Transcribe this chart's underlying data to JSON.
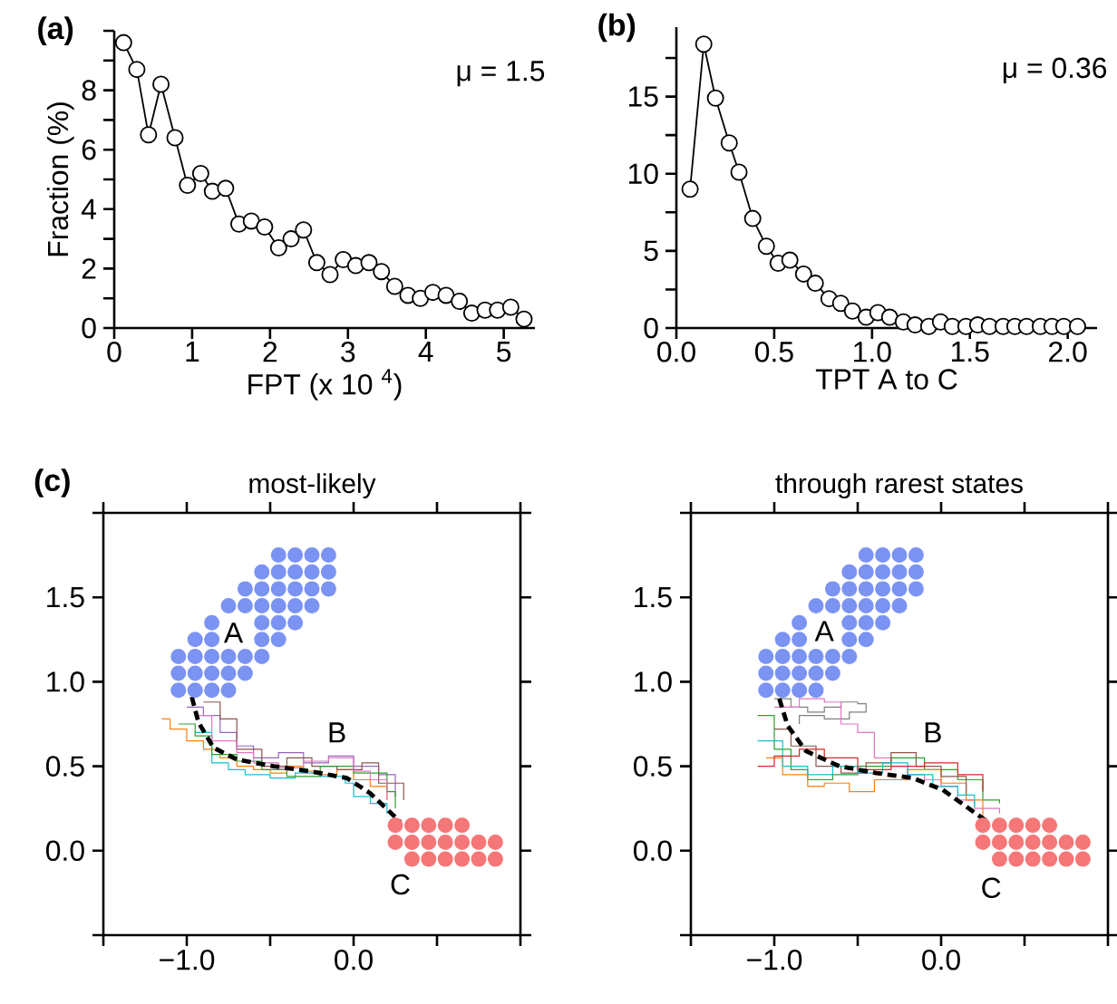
{
  "chart_data": [
    {
      "type": "line",
      "xlabel": "FPT (x 10 $^{4}$)",
      "ylabel": "Fraction (%)",
      "annotations": [
        "(a)",
        "μ = 1.5"
      ],
      "marker": "circle",
      "line_style": "solid",
      "xlim": [
        0,
        5.4
      ],
      "ylim": [
        0,
        10
      ],
      "xticks": [
        0,
        1,
        2,
        3,
        4,
        5
      ],
      "yticks": [
        0,
        {
          "value": 1,
          "label": null
        },
        2,
        {
          "value": 3,
          "label": null
        },
        4,
        {
          "value": 5,
          "label": null
        },
        6,
        {
          "value": 7,
          "label": null
        },
        8,
        {
          "value": 9,
          "label": null
        },
        {
          "value": 10,
          "label": null
        }
      ],
      "series": [
        {
          "color": "#000000",
          "x": [
            0.12,
            0.29,
            0.44,
            0.6,
            0.78,
            0.94,
            1.11,
            1.26,
            1.43,
            1.6,
            1.76,
            1.93,
            2.11,
            2.27,
            2.43,
            2.6,
            2.77,
            2.94,
            3.1,
            3.27,
            3.43,
            3.6,
            3.77,
            3.93,
            4.09,
            4.26,
            4.43,
            4.59,
            4.76,
            4.92,
            5.09,
            5.26
          ],
          "values": [
            9.6,
            8.7,
            6.5,
            8.2,
            6.4,
            4.8,
            5.2,
            4.6,
            4.7,
            3.5,
            3.6,
            3.4,
            2.7,
            3.0,
            3.3,
            2.2,
            1.8,
            2.3,
            2.1,
            2.2,
            1.9,
            1.4,
            1.1,
            1.0,
            1.2,
            1.1,
            0.9,
            0.5,
            0.6,
            0.6,
            0.7,
            0.3
          ]
        }
      ]
    },
    {
      "type": "line",
      "xlabel": "TPT A to C",
      "annotations": [
        "(b)",
        "μ = 0.36"
      ],
      "marker": "circle",
      "line_style": "solid",
      "xlim": [
        0,
        2.15
      ],
      "ylim": [
        0,
        19.5
      ],
      "xticks": [
        {
          "value": 0,
          "label": "0.0"
        },
        {
          "value": 0.5,
          "label": "0.5"
        },
        {
          "value": 1,
          "label": "1.0"
        },
        {
          "value": 1.5,
          "label": "1.5"
        },
        {
          "value": 2,
          "label": "2.0"
        }
      ],
      "yticks": [
        0,
        {
          "value": 2.5,
          "label": null
        },
        5,
        {
          "value": 7.5,
          "label": null
        },
        10,
        {
          "value": 12.5,
          "label": null
        },
        15,
        {
          "value": 17.5,
          "label": null
        }
      ],
      "series": [
        {
          "color": "#000000",
          "x": [
            0.07,
            0.14,
            0.2,
            0.27,
            0.32,
            0.39,
            0.46,
            0.52,
            0.58,
            0.65,
            0.71,
            0.78,
            0.84,
            0.9,
            0.97,
            1.03,
            1.09,
            1.16,
            1.22,
            1.29,
            1.35,
            1.41,
            1.48,
            1.54,
            1.6,
            1.67,
            1.73,
            1.79,
            1.86,
            1.92,
            1.98,
            2.05
          ],
          "values": [
            9.0,
            18.4,
            14.9,
            12.0,
            10.1,
            7.1,
            5.3,
            4.2,
            4.4,
            3.5,
            2.9,
            1.9,
            1.6,
            1.1,
            0.7,
            1.0,
            0.7,
            0.4,
            0.2,
            0.1,
            0.4,
            0.1,
            0.1,
            0.2,
            0.1,
            0.1,
            0.1,
            0.1,
            0.1,
            0.1,
            0.1,
            0.1
          ]
        }
      ]
    },
    {
      "type": "scatter",
      "title": "most-likely",
      "annotations": [
        "(c)",
        "A",
        "B",
        "C"
      ],
      "xlim": [
        -1.5,
        1.0
      ],
      "ylim": [
        -0.5,
        2.0
      ],
      "xticks": [
        {
          "value": -1.5,
          "label": null
        },
        {
          "value": -1,
          "label": "−1.0"
        },
        {
          "value": -0.5,
          "label": null
        },
        {
          "value": 0,
          "label": "0.0"
        },
        {
          "value": 0.5,
          "label": null
        },
        {
          "value": 1,
          "label": null
        }
      ],
      "yticks": [
        {
          "value": -0.5,
          "label": null
        },
        {
          "value": 0,
          "label": "0.0"
        },
        {
          "value": 0.5,
          "label": "0.5"
        },
        {
          "value": 1,
          "label": "1.0"
        },
        {
          "value": 1.5,
          "label": "1.5"
        },
        {
          "value": 2,
          "label": null
        }
      ],
      "series": [
        {
          "type": "scatter",
          "marker": "circle",
          "color": "#7b93f2",
          "x": [
            -1.05,
            -0.95,
            -0.85,
            -0.75,
            -1.05,
            -0.95,
            -0.85,
            -0.75,
            -0.65,
            -1.05,
            -0.95,
            -0.85,
            -0.75,
            -0.65,
            -0.55,
            -0.95,
            -0.85,
            -0.55,
            -0.45,
            -0.85,
            -0.55,
            -0.45,
            -0.35,
            -0.75,
            -0.65,
            -0.55,
            -0.45,
            -0.35,
            -0.25,
            -0.65,
            -0.55,
            -0.45,
            -0.35,
            -0.25,
            -0.15,
            -0.55,
            -0.45,
            -0.35,
            -0.25,
            -0.15,
            -0.45,
            -0.35,
            -0.25,
            -0.15
          ],
          "values": [
            0.95,
            0.95,
            0.95,
            0.95,
            1.05,
            1.05,
            1.05,
            1.05,
            1.05,
            1.15,
            1.15,
            1.15,
            1.15,
            1.15,
            1.15,
            1.25,
            1.25,
            1.25,
            1.25,
            1.35,
            1.35,
            1.35,
            1.35,
            1.45,
            1.45,
            1.45,
            1.45,
            1.45,
            1.45,
            1.55,
            1.55,
            1.55,
            1.55,
            1.55,
            1.55,
            1.65,
            1.65,
            1.65,
            1.65,
            1.65,
            1.75,
            1.75,
            1.75,
            1.75
          ]
        },
        {
          "type": "scatter",
          "marker": "circle",
          "color": "#f57777",
          "x": [
            0.25,
            0.35,
            0.45,
            0.55,
            0.65,
            0.25,
            0.35,
            0.45,
            0.55,
            0.65,
            0.75,
            0.85,
            0.35,
            0.45,
            0.55,
            0.65,
            0.75,
            0.85
          ],
          "values": [
            0.15,
            0.15,
            0.15,
            0.15,
            0.15,
            0.05,
            0.05,
            0.05,
            0.05,
            0.05,
            0.05,
            0.05,
            -0.05,
            -0.05,
            -0.05,
            -0.05,
            -0.05,
            -0.05
          ]
        },
        {
          "type": "step",
          "color": "#ff7f0e",
          "x": [
            -1.15,
            -1.1,
            -1.0,
            -0.9,
            -0.8,
            -0.7,
            -0.6,
            -0.5,
            -0.4,
            -0.3,
            -0.2,
            -0.1,
            0.0,
            0.1,
            0.2
          ],
          "values": [
            0.78,
            0.72,
            0.65,
            0.6,
            0.55,
            0.5,
            0.48,
            0.46,
            0.5,
            0.47,
            0.45,
            0.48,
            0.42,
            0.38,
            0.3
          ]
        },
        {
          "type": "step",
          "color": "#17becf",
          "x": [
            -0.95,
            -0.85,
            -0.75,
            -0.65,
            -0.5,
            -0.35,
            -0.2,
            -0.05,
            0.0,
            0.1,
            0.2
          ],
          "values": [
            0.7,
            0.52,
            0.48,
            0.45,
            0.43,
            0.46,
            0.44,
            0.4,
            0.32,
            0.28,
            0.22
          ]
        },
        {
          "type": "step",
          "color": "#9467bd",
          "x": [
            -1.0,
            -0.9,
            -0.8,
            -0.7,
            -0.6,
            -0.45,
            -0.3,
            -0.15,
            0.0,
            0.15,
            0.25
          ],
          "values": [
            0.85,
            0.8,
            0.7,
            0.62,
            0.55,
            0.58,
            0.52,
            0.56,
            0.5,
            0.45,
            0.32
          ]
        },
        {
          "type": "step",
          "color": "#8c564b",
          "x": [
            -0.9,
            -0.8,
            -0.7,
            -0.55,
            -0.4,
            -0.25,
            -0.1,
            0.05,
            0.15,
            0.3
          ],
          "values": [
            0.88,
            0.78,
            0.6,
            0.5,
            0.55,
            0.5,
            0.48,
            0.52,
            0.4,
            0.3
          ]
        },
        {
          "type": "step",
          "color": "#2ca02c",
          "x": [
            -1.05,
            -0.95,
            -0.85,
            -0.7,
            -0.55,
            -0.4,
            -0.2,
            0.0,
            0.2,
            0.25
          ],
          "values": [
            0.75,
            0.68,
            0.57,
            0.53,
            0.48,
            0.44,
            0.5,
            0.46,
            0.35,
            0.25
          ]
        },
        {
          "type": "step",
          "color": "#e377c2",
          "x": [
            -0.95,
            -0.85,
            -0.7,
            -0.6,
            -0.45,
            -0.3,
            -0.15,
            0.0,
            0.1,
            0.2
          ],
          "values": [
            0.8,
            0.65,
            0.58,
            0.52,
            0.49,
            0.53,
            0.55,
            0.47,
            0.42,
            0.3
          ]
        },
        {
          "type": "line",
          "line_style": "dashed",
          "marker": "none",
          "color": "#000000",
          "x": [
            -0.97,
            -0.93,
            -0.84,
            -0.7,
            -0.48,
            -0.26,
            -0.04,
            0.1,
            0.28
          ],
          "values": [
            0.91,
            0.76,
            0.61,
            0.54,
            0.5,
            0.47,
            0.43,
            0.34,
            0.17
          ]
        }
      ]
    },
    {
      "type": "scatter",
      "title": "through rarest states",
      "annotations": [
        "A",
        "B",
        "C"
      ],
      "xlim": [
        -1.5,
        1.0
      ],
      "ylim": [
        -0.5,
        2.0
      ],
      "xticks": [
        {
          "value": -1.5,
          "label": null
        },
        {
          "value": -1,
          "label": "−1.0"
        },
        {
          "value": -0.5,
          "label": null
        },
        {
          "value": 0,
          "label": "0.0"
        },
        {
          "value": 0.5,
          "label": null
        },
        {
          "value": 1,
          "label": null
        }
      ],
      "yticks": [
        {
          "value": -0.5,
          "label": null
        },
        {
          "value": 0,
          "label": "0.0"
        },
        {
          "value": 0.5,
          "label": "0.5"
        },
        {
          "value": 1,
          "label": "1.0"
        },
        {
          "value": 1.5,
          "label": "1.5"
        },
        {
          "value": 2,
          "label": null
        }
      ],
      "series": [
        {
          "type": "scatter",
          "marker": "circle",
          "color": "#7b93f2",
          "x": [
            -1.05,
            -0.95,
            -0.85,
            -0.75,
            -1.05,
            -0.95,
            -0.85,
            -0.75,
            -0.65,
            -1.05,
            -0.95,
            -0.85,
            -0.75,
            -0.65,
            -0.55,
            -0.95,
            -0.85,
            -0.55,
            -0.45,
            -0.85,
            -0.55,
            -0.45,
            -0.35,
            -0.75,
            -0.65,
            -0.55,
            -0.45,
            -0.35,
            -0.25,
            -0.65,
            -0.55,
            -0.45,
            -0.35,
            -0.25,
            -0.15,
            -0.55,
            -0.45,
            -0.35,
            -0.25,
            -0.15,
            -0.45,
            -0.35,
            -0.25,
            -0.15
          ],
          "values": [
            0.95,
            0.95,
            0.95,
            0.95,
            1.05,
            1.05,
            1.05,
            1.05,
            1.05,
            1.15,
            1.15,
            1.15,
            1.15,
            1.15,
            1.15,
            1.25,
            1.25,
            1.25,
            1.25,
            1.35,
            1.35,
            1.35,
            1.35,
            1.45,
            1.45,
            1.45,
            1.45,
            1.45,
            1.45,
            1.55,
            1.55,
            1.55,
            1.55,
            1.55,
            1.55,
            1.65,
            1.65,
            1.65,
            1.65,
            1.65,
            1.75,
            1.75,
            1.75,
            1.75
          ]
        },
        {
          "type": "scatter",
          "marker": "circle",
          "color": "#f57777",
          "x": [
            0.25,
            0.35,
            0.45,
            0.55,
            0.65,
            0.25,
            0.35,
            0.45,
            0.55,
            0.65,
            0.75,
            0.85,
            0.35,
            0.45,
            0.55,
            0.65,
            0.75,
            0.85
          ],
          "values": [
            0.15,
            0.15,
            0.15,
            0.15,
            0.15,
            0.05,
            0.05,
            0.05,
            0.05,
            0.05,
            0.05,
            0.05,
            -0.05,
            -0.05,
            -0.05,
            -0.05,
            -0.05,
            -0.05
          ]
        },
        {
          "type": "step",
          "color": "#7f7f7f",
          "x": [
            -1.0,
            -0.9,
            -0.8,
            -0.7,
            -0.6,
            -0.5,
            -0.45,
            -0.55,
            -0.7,
            -0.85
          ],
          "values": [
            0.9,
            0.85,
            0.82,
            0.85,
            0.88,
            0.87,
            0.82,
            0.78,
            0.8,
            0.75
          ]
        },
        {
          "type": "step",
          "color": "#e377c2",
          "x": [
            -1.0,
            -0.85,
            -0.7,
            -0.6,
            -0.5,
            -0.4,
            -0.3,
            -0.2,
            -0.1,
            0.0,
            0.1,
            0.2,
            0.35
          ],
          "values": [
            0.85,
            0.9,
            0.88,
            0.75,
            0.7,
            0.55,
            0.5,
            0.45,
            0.42,
            0.38,
            0.3,
            0.25,
            0.22
          ]
        },
        {
          "type": "step",
          "color": "#2ca02c",
          "x": [
            -1.1,
            -1.0,
            -0.9,
            -0.8,
            -0.65,
            -0.5,
            -0.3,
            -0.1,
            0.1,
            0.25,
            0.35
          ],
          "values": [
            0.8,
            0.6,
            0.48,
            0.42,
            0.45,
            0.5,
            0.55,
            0.48,
            0.42,
            0.3,
            0.28
          ]
        },
        {
          "type": "step",
          "color": "#ff7f0e",
          "x": [
            -1.05,
            -0.95,
            -0.8,
            -0.7,
            -0.55,
            -0.4,
            -0.2,
            0.0,
            0.15,
            0.25
          ],
          "values": [
            0.55,
            0.45,
            0.38,
            0.4,
            0.35,
            0.42,
            0.48,
            0.4,
            0.3,
            0.2
          ]
        },
        {
          "type": "step",
          "color": "#8c564b",
          "x": [
            -1.0,
            -0.9,
            -0.75,
            -0.6,
            -0.45,
            -0.3,
            -0.15,
            0.0,
            0.15
          ],
          "values": [
            0.72,
            0.62,
            0.5,
            0.46,
            0.52,
            0.58,
            0.5,
            0.44,
            0.33
          ]
        },
        {
          "type": "step",
          "color": "#17becf",
          "x": [
            -1.1,
            -0.95,
            -0.8,
            -0.65,
            -0.5,
            -0.35,
            -0.2,
            -0.05,
            0.1,
            0.2
          ],
          "values": [
            0.65,
            0.5,
            0.45,
            0.5,
            0.46,
            0.52,
            0.45,
            0.38,
            0.33,
            0.26
          ]
        },
        {
          "type": "step",
          "color": "#d62728",
          "x": [
            -1.1,
            -1.0,
            -0.85,
            -0.7,
            -0.5,
            -0.3,
            -0.1,
            0.1,
            0.25
          ],
          "values": [
            0.5,
            0.56,
            0.6,
            0.55,
            0.48,
            0.5,
            0.52,
            0.45,
            0.35
          ]
        },
        {
          "type": "line",
          "line_style": "dashed",
          "marker": "none",
          "color": "#000000",
          "x": [
            -0.97,
            -0.92,
            -0.81,
            -0.61,
            -0.39,
            -0.17,
            0.01,
            0.28
          ],
          "values": [
            0.9,
            0.74,
            0.59,
            0.5,
            0.46,
            0.43,
            0.36,
            0.17
          ]
        }
      ]
    }
  ]
}
